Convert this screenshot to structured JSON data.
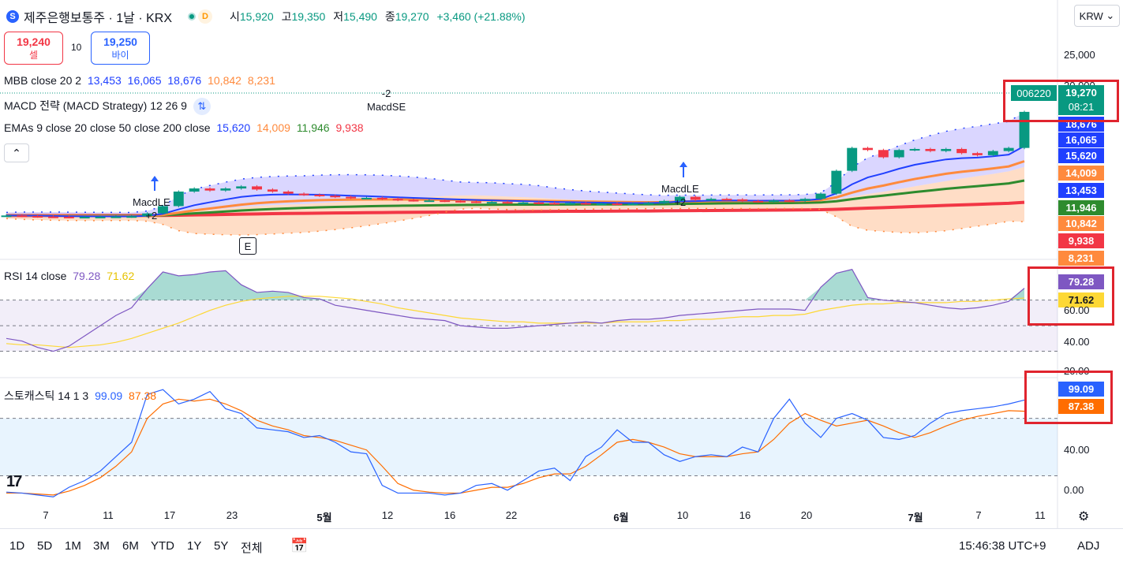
{
  "header": {
    "logo_icon": "S",
    "symbol_title": "제주은행보통주 · 1날 · KRX",
    "status_icon": "market-open-dot-icon",
    "delay_badge": "D",
    "ohlc": [
      {
        "key": "시",
        "value": "15,920"
      },
      {
        "key": "고",
        "value": "19,350"
      },
      {
        "key": "저",
        "value": "15,490"
      },
      {
        "key": "종",
        "value": "19,270"
      }
    ],
    "change": "+3,460 (+21.88%)",
    "currency_button": "KRW"
  },
  "trade": {
    "sell_price": "19,240",
    "sell_label": "셀",
    "spread": "10",
    "buy_price": "19,250",
    "buy_label": "바이"
  },
  "indicators": {
    "mbb": {
      "label": "MBB close 20 2",
      "values": [
        "13,453",
        "16,065",
        "18,676",
        "10,842",
        "8,231"
      ]
    },
    "macd": {
      "label": "MACD 전략 (MACD Strategy) 12 26 9"
    },
    "emas": {
      "label": "EMAs 9 close 20 close 50 close 200 close",
      "values": [
        "15,620",
        "14,009",
        "11,946",
        "9,938"
      ]
    },
    "rsi": {
      "label": "RSI 14 close",
      "values": [
        "79.28",
        "71.62"
      ]
    },
    "stoch": {
      "label": "스토캐스틱 14 1 3",
      "values": [
        "99.09",
        "87.38"
      ]
    }
  },
  "colors": {
    "up": "#089981",
    "down": "#f23645",
    "mbb_fill": "#7b6cff",
    "mbb_lower": "#ffb380",
    "ema9": "#2040ff",
    "ema20": "#ff8a3d",
    "ema50": "#2e8b2e",
    "ema200": "#f23645",
    "rsi": "#7e57c2",
    "rsi_ma": "#fdd835",
    "stoch_k": "#2962ff",
    "stoch_d": "#ff6d00",
    "highlight": "#e0242e"
  },
  "price_axis": {
    "ticks": [
      "25,000",
      "20,000"
    ],
    "current": {
      "symbol": "006220",
      "price": "19,270",
      "countdown": "08:21"
    },
    "labels": [
      {
        "text": "18,676",
        "color": "#2040ff"
      },
      {
        "text": "16,065",
        "color": "#2040ff"
      },
      {
        "text": "15,620",
        "color": "#2040ff"
      },
      {
        "text": "14,009",
        "color": "#ff8a3d"
      },
      {
        "text": "13,453",
        "color": "#2040ff"
      },
      {
        "text": "11,946",
        "color": "#2e8b2e"
      },
      {
        "text": "10,842",
        "color": "#ff8a3d"
      },
      {
        "text": "9,938",
        "color": "#f23645"
      },
      {
        "text": "8,231",
        "color": "#ff8a3d"
      }
    ]
  },
  "rsi_axis": {
    "ticks": [
      "60.00",
      "40.00",
      "20.00"
    ]
  },
  "stoch_axis": {
    "ticks": [
      "40.00",
      "0.00"
    ]
  },
  "signals": [
    {
      "id": "macd-le-1",
      "label": "MacdLE",
      "qty": "+2"
    },
    {
      "id": "macd-se",
      "label": "MacdSE",
      "qty": "-2"
    },
    {
      "id": "macd-le-2",
      "label": "MacdLE",
      "qty": "+2"
    }
  ],
  "earnings_badge": "E",
  "time_axis": [
    "7",
    "11",
    "17",
    "23",
    "5월",
    "12",
    "16",
    "22",
    "6월",
    "10",
    "16",
    "20",
    "7월",
    "7",
    "11"
  ],
  "toolbar": {
    "timeframes": [
      "1D",
      "5D",
      "1M",
      "3M",
      "6M",
      "YTD",
      "1Y",
      "5Y",
      "전체"
    ],
    "clock": "15:46:38 UTC+9",
    "adj": "ADJ"
  },
  "chart_data": [
    {
      "type": "candlestick",
      "title": "제주은행보통주 · 1날 · KRX",
      "x": [
        "4/3",
        "4/4",
        "4/7",
        "4/8",
        "4/9",
        "4/10",
        "4/11",
        "4/14",
        "4/15",
        "4/16",
        "4/17",
        "4/18",
        "4/21",
        "4/22",
        "4/23",
        "4/24",
        "4/25",
        "4/28",
        "4/29",
        "4/30",
        "5/2",
        "5/7",
        "5/8",
        "5/9",
        "5/12",
        "5/13",
        "5/14",
        "5/15",
        "5/16",
        "5/19",
        "5/20",
        "5/21",
        "5/22",
        "5/23",
        "5/26",
        "5/27",
        "5/28",
        "5/29",
        "5/30",
        "6/2",
        "6/4",
        "6/5",
        "6/9",
        "6/10",
        "6/11",
        "6/12",
        "6/13",
        "6/16",
        "6/17",
        "6/18",
        "6/19",
        "6/20",
        "6/23",
        "6/24",
        "6/25",
        "6/26",
        "6/27",
        "6/30",
        "7/1",
        "7/2",
        "7/3",
        "7/4",
        "7/7",
        "7/8",
        "7/9",
        "7/10"
      ],
      "close": [
        9300,
        9250,
        9200,
        9180,
        9150,
        9170,
        9180,
        9200,
        9230,
        9500,
        10200,
        11600,
        11900,
        11700,
        11900,
        12100,
        11800,
        11600,
        11400,
        11300,
        11200,
        11100,
        11000,
        11000,
        10900,
        10800,
        10750,
        10750,
        10700,
        10650,
        10600,
        10600,
        10550,
        10550,
        10500,
        10450,
        10500,
        10450,
        10450,
        10400,
        10450,
        10500,
        10700,
        11100,
        10800,
        10900,
        10850,
        10700,
        10650,
        10750,
        10700,
        10900,
        11400,
        13600,
        15800,
        15600,
        14900,
        15600,
        15700,
        15500,
        15700,
        15300,
        15100,
        15500,
        15800,
        19270
      ],
      "ylim": [
        5000,
        27000
      ]
    },
    {
      "type": "line",
      "title": "RSI 14 close",
      "series": [
        {
          "name": "RSI",
          "values": [
            40,
            38,
            33,
            30,
            34,
            42,
            50,
            58,
            64,
            79,
            92,
            89,
            90,
            92,
            93,
            82,
            76,
            77,
            76,
            72,
            71,
            66,
            64,
            62,
            60,
            58,
            56,
            55,
            54,
            50,
            49,
            48,
            48,
            49,
            50,
            51,
            52,
            53,
            52,
            54,
            55,
            55,
            56,
            58,
            59,
            60,
            61,
            62,
            63,
            63,
            63,
            62,
            80,
            91,
            94,
            72,
            70,
            69,
            68,
            66,
            64,
            63,
            64,
            66,
            69,
            79.28
          ]
        },
        {
          "name": "RSI MA",
          "values": [
            36,
            35,
            35,
            34,
            33,
            34,
            35,
            37,
            40,
            44,
            48,
            52,
            57,
            62,
            66,
            69,
            71,
            72,
            73,
            73,
            73,
            72,
            71,
            69,
            67,
            64,
            62,
            60,
            58,
            56,
            55,
            54,
            53,
            53,
            52,
            52,
            52,
            52,
            52,
            53,
            53,
            53,
            54,
            54,
            55,
            55,
            56,
            57,
            57,
            58,
            58,
            59,
            62,
            64,
            66,
            67,
            67,
            68,
            68,
            68,
            68,
            69,
            69,
            70,
            71,
            71.62
          ]
        }
      ],
      "ylim": [
        10,
        100
      ]
    },
    {
      "type": "line",
      "title": "스토캐스틱 14 1 3",
      "series": [
        {
          "name": "%K",
          "values": [
            3,
            2,
            0,
            -2,
            8,
            15,
            25,
            40,
            55,
            105,
            110,
            95,
            100,
            108,
            90,
            85,
            70,
            68,
            66,
            60,
            62,
            55,
            45,
            43,
            10,
            2,
            2,
            2,
            0,
            2,
            10,
            12,
            5,
            15,
            25,
            28,
            15,
            40,
            50,
            68,
            55,
            55,
            42,
            35,
            40,
            42,
            40,
            50,
            45,
            80,
            100,
            75,
            60,
            80,
            85,
            78,
            60,
            58,
            62,
            75,
            85,
            88,
            90,
            92,
            95,
            99.09
          ]
        },
        {
          "name": "%D",
          "values": [
            2,
            2,
            1,
            0,
            4,
            10,
            18,
            30,
            45,
            80,
            95,
            100,
            98,
            100,
            95,
            88,
            78,
            72,
            68,
            62,
            60,
            57,
            52,
            47,
            30,
            12,
            5,
            3,
            2,
            2,
            5,
            8,
            8,
            12,
            18,
            22,
            22,
            30,
            42,
            55,
            58,
            55,
            50,
            43,
            40,
            40,
            40,
            43,
            45,
            58,
            75,
            85,
            78,
            72,
            75,
            78,
            72,
            65,
            60,
            65,
            72,
            78,
            82,
            85,
            88,
            87.38
          ]
        }
      ],
      "ylim": [
        -10,
        120
      ]
    }
  ]
}
